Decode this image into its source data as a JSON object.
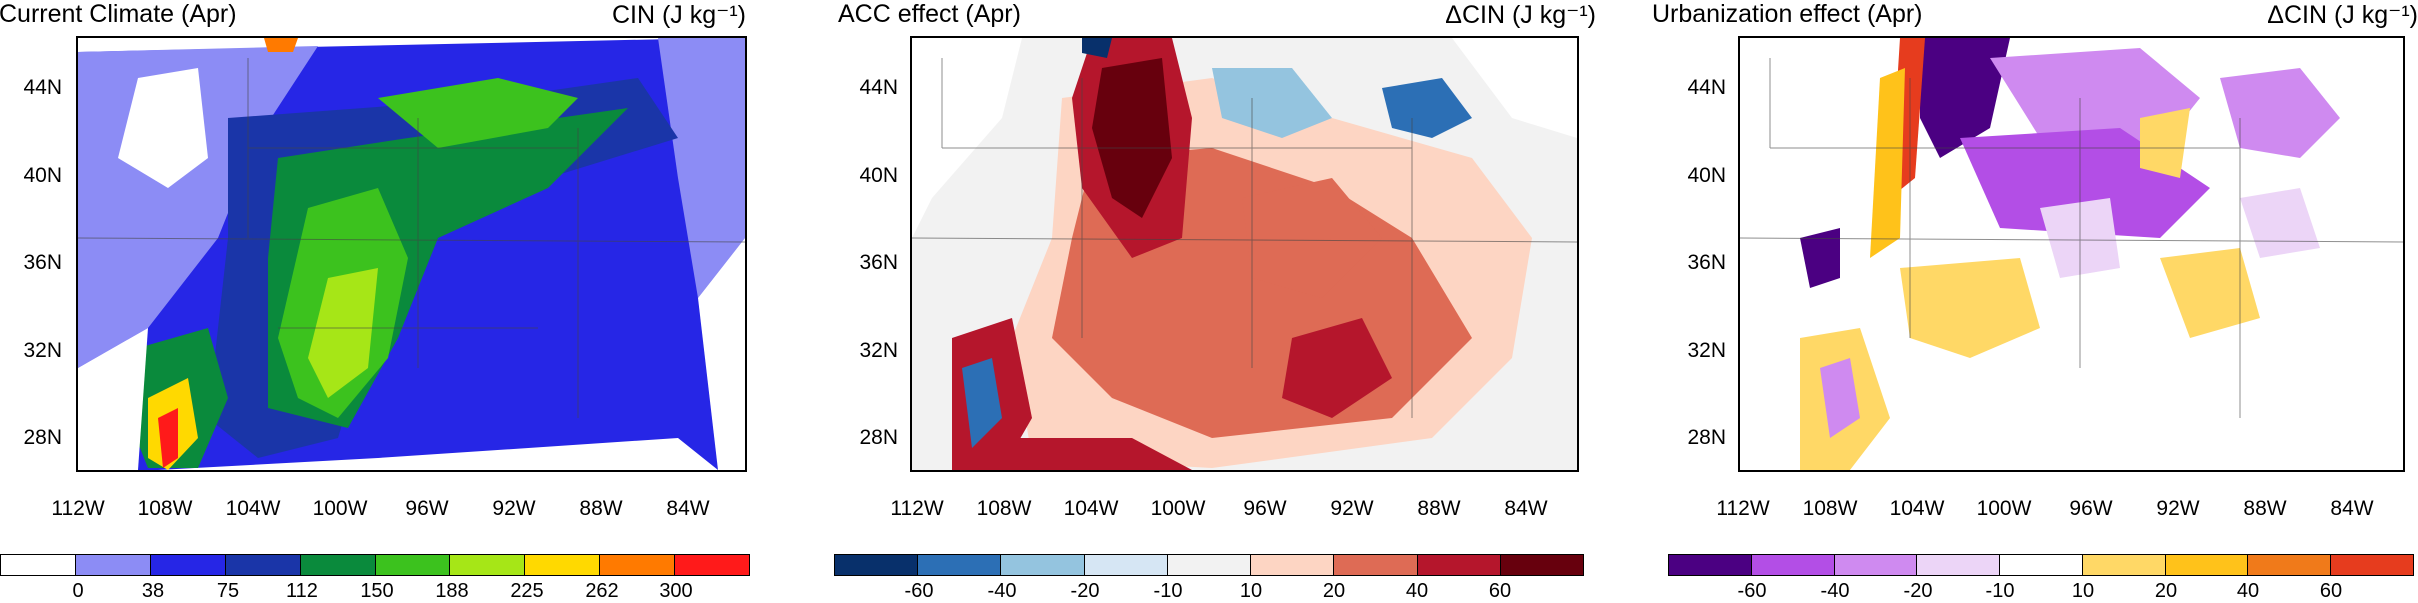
{
  "panels": [
    {
      "title_left": "Current Climate (Apr)",
      "title_right": "CIN (J kg⁻¹)",
      "colorbar": {
        "colors": [
          "#ffffff",
          "#8c8cf5",
          "#2626e6",
          "#1a35a8",
          "#0a8a3c",
          "#3cc21e",
          "#a6e617",
          "#ffd900",
          "#ff7a00",
          "#ff1a1a"
        ],
        "labels": [
          "0",
          "38",
          "75",
          "112",
          "150",
          "188",
          "225",
          "262",
          "300"
        ]
      }
    },
    {
      "title_left": "ACC effect (Apr)",
      "title_right": "ΔCIN (J kg⁻¹)",
      "colorbar": {
        "colors": [
          "#08306b",
          "#2c6fb5",
          "#94c4df",
          "#d6e6f4",
          "#f2f2f2",
          "#fdd5c3",
          "#de6b55",
          "#b5162c",
          "#67000d"
        ],
        "labels": [
          "-60",
          "-40",
          "-20",
          "-10",
          "10",
          "20",
          "40",
          "60"
        ]
      }
    },
    {
      "title_left": "Urbanization effect (Apr)",
      "title_right": "ΔCIN (J kg⁻¹)",
      "colorbar": {
        "colors": [
          "#4b0082",
          "#b34ee6",
          "#cf8af0",
          "#ecd5f7",
          "#ffffff",
          "#ffd866",
          "#ffc21a",
          "#f07a1a",
          "#e63c1e"
        ],
        "labels": [
          "-60",
          "-40",
          "-20",
          "-10",
          "10",
          "20",
          "40",
          "60"
        ]
      }
    }
  ],
  "axes": {
    "lat_labels": [
      "44N",
      "40N",
      "36N",
      "32N",
      "28N"
    ],
    "lon_labels": [
      "112W",
      "108W",
      "104W",
      "100W",
      "96W",
      "92W",
      "88W",
      "84W"
    ]
  }
}
